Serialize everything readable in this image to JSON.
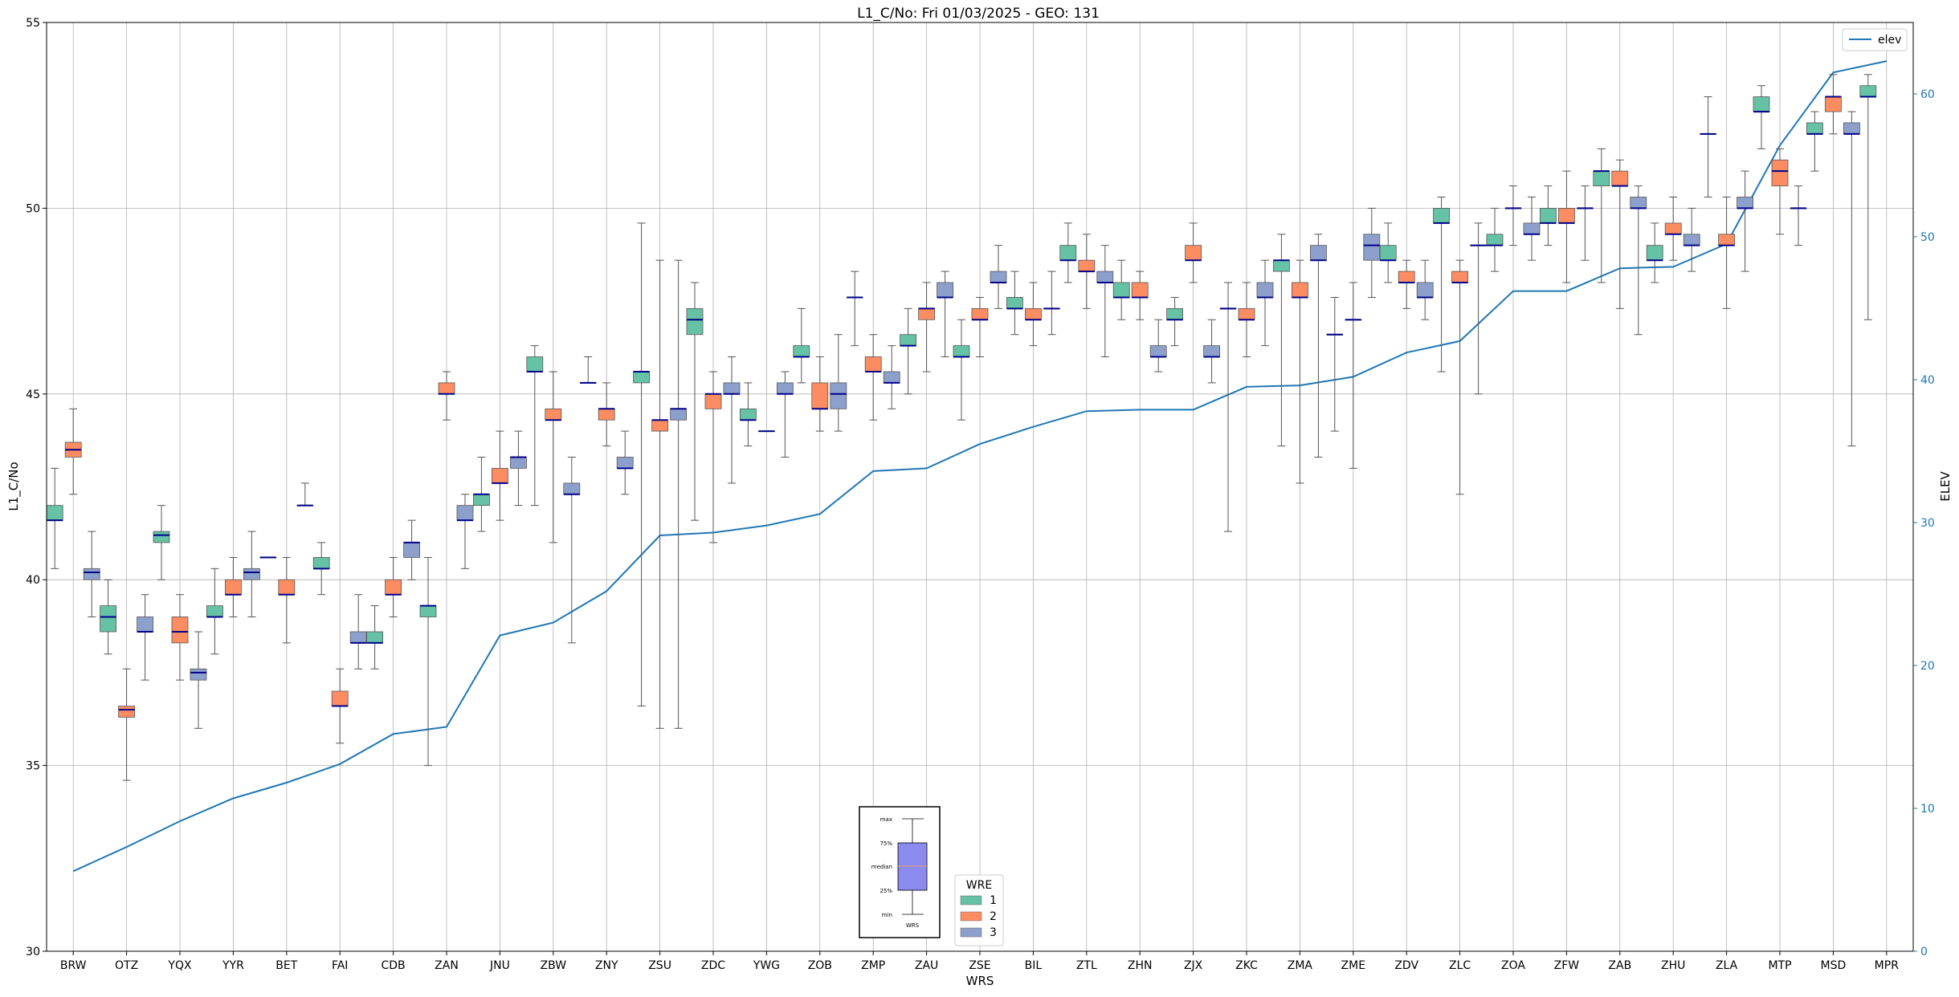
{
  "chart_data": {
    "type": "box",
    "title": "L1_C/No: Fri 01/03/2025 - GEO: 131",
    "xlabel": "WRS",
    "ylabel": "L1_C/No",
    "y2label": "ELEV",
    "ylim": [
      30,
      55
    ],
    "y2lim": [
      0,
      65
    ],
    "yticks": [
      30,
      35,
      40,
      45,
      50,
      55
    ],
    "y2ticks": [
      0,
      10,
      20,
      30,
      40,
      50,
      60
    ],
    "grid": true,
    "categories": [
      "BRW",
      "OTZ",
      "YQX",
      "YYR",
      "BET",
      "FAI",
      "CDB",
      "ZAN",
      "JNU",
      "ZBW",
      "ZNY",
      "ZSU",
      "ZDC",
      "YWG",
      "ZOB",
      "ZMP",
      "ZAU",
      "ZSE",
      "BIL",
      "ZTL",
      "ZHN",
      "ZJX",
      "ZKC",
      "ZMA",
      "ZME",
      "ZDV",
      "ZLC",
      "ZOA",
      "ZFW",
      "ZAB",
      "ZHU",
      "ZLA",
      "MTP",
      "MSD",
      "MPR"
    ],
    "wre_colors": {
      "1": "#66c2a5",
      "2": "#fc8d62",
      "3": "#8da0cb"
    },
    "median_color": "#00008b",
    "boxes": [
      {
        "cat": "BRW",
        "wre": 1,
        "min": 40.3,
        "q1": 41.6,
        "median": 41.6,
        "q3": 42.0,
        "max": 43.0
      },
      {
        "cat": "BRW",
        "wre": 2,
        "min": 42.3,
        "q1": 43.3,
        "median": 43.5,
        "q3": 43.7,
        "max": 44.6
      },
      {
        "cat": "BRW",
        "wre": 3,
        "min": 39.0,
        "q1": 40.0,
        "median": 40.2,
        "q3": 40.3,
        "max": 41.3
      },
      {
        "cat": "OTZ",
        "wre": 1,
        "min": 38.0,
        "q1": 38.6,
        "median": 39.0,
        "q3": 39.3,
        "max": 40.0
      },
      {
        "cat": "OTZ",
        "wre": 2,
        "min": 34.6,
        "q1": 36.3,
        "median": 36.5,
        "q3": 36.6,
        "max": 37.6
      },
      {
        "cat": "OTZ",
        "wre": 3,
        "min": 37.3,
        "q1": 38.6,
        "median": 38.6,
        "q3": 39.0,
        "max": 39.6
      },
      {
        "cat": "YQX",
        "wre": 1,
        "min": 40.0,
        "q1": 41.0,
        "median": 41.2,
        "q3": 41.3,
        "max": 42.0
      },
      {
        "cat": "YQX",
        "wre": 2,
        "min": 37.3,
        "q1": 38.3,
        "median": 38.6,
        "q3": 39.0,
        "max": 39.6
      },
      {
        "cat": "YQX",
        "wre": 3,
        "min": 36.0,
        "q1": 37.3,
        "median": 37.5,
        "q3": 37.6,
        "max": 38.6
      },
      {
        "cat": "YYR",
        "wre": 1,
        "min": 38.0,
        "q1": 39.0,
        "median": 39.0,
        "q3": 39.3,
        "max": 40.3
      },
      {
        "cat": "YYR",
        "wre": 2,
        "min": 39.0,
        "q1": 39.6,
        "median": 39.6,
        "q3": 40.0,
        "max": 40.6
      },
      {
        "cat": "YYR",
        "wre": 3,
        "min": 39.0,
        "q1": 40.0,
        "median": 40.2,
        "q3": 40.3,
        "max": 41.3
      },
      {
        "cat": "BET",
        "wre": 1,
        "min": 40.6,
        "q1": 40.6,
        "median": 40.6,
        "q3": 40.6,
        "max": 40.6
      },
      {
        "cat": "BET",
        "wre": 2,
        "min": 38.3,
        "q1": 39.6,
        "median": 39.6,
        "q3": 40.0,
        "max": 40.6
      },
      {
        "cat": "BET",
        "wre": 3,
        "min": 42.0,
        "q1": 42.0,
        "median": 42.0,
        "q3": 42.0,
        "max": 42.6
      },
      {
        "cat": "FAI",
        "wre": 1,
        "min": 39.6,
        "q1": 40.3,
        "median": 40.3,
        "q3": 40.6,
        "max": 41.0
      },
      {
        "cat": "FAI",
        "wre": 2,
        "min": 35.6,
        "q1": 36.6,
        "median": 36.6,
        "q3": 37.0,
        "max": 37.6
      },
      {
        "cat": "FAI",
        "wre": 3,
        "min": 37.6,
        "q1": 38.3,
        "median": 38.3,
        "q3": 38.6,
        "max": 39.6
      },
      {
        "cat": "CDB",
        "wre": 1,
        "min": 37.6,
        "q1": 38.3,
        "median": 38.3,
        "q3": 38.6,
        "max": 39.3
      },
      {
        "cat": "CDB",
        "wre": 2,
        "min": 39.0,
        "q1": 39.6,
        "median": 39.6,
        "q3": 40.0,
        "max": 40.6
      },
      {
        "cat": "CDB",
        "wre": 3,
        "min": 40.0,
        "q1": 40.6,
        "median": 41.0,
        "q3": 41.0,
        "max": 41.6
      },
      {
        "cat": "ZAN",
        "wre": 1,
        "min": 35.0,
        "q1": 39.0,
        "median": 39.3,
        "q3": 39.3,
        "max": 40.6
      },
      {
        "cat": "ZAN",
        "wre": 2,
        "min": 44.3,
        "q1": 45.0,
        "median": 45.0,
        "q3": 45.3,
        "max": 45.6
      },
      {
        "cat": "ZAN",
        "wre": 3,
        "min": 40.3,
        "q1": 41.6,
        "median": 41.6,
        "q3": 42.0,
        "max": 42.3
      },
      {
        "cat": "JNU",
        "wre": 1,
        "min": 41.3,
        "q1": 42.0,
        "median": 42.3,
        "q3": 42.3,
        "max": 43.3
      },
      {
        "cat": "JNU",
        "wre": 2,
        "min": 41.6,
        "q1": 42.6,
        "median": 42.6,
        "q3": 43.0,
        "max": 44.0
      },
      {
        "cat": "JNU",
        "wre": 3,
        "min": 42.0,
        "q1": 43.0,
        "median": 43.3,
        "q3": 43.3,
        "max": 44.0
      },
      {
        "cat": "ZBW",
        "wre": 1,
        "min": 42.0,
        "q1": 45.6,
        "median": 45.6,
        "q3": 46.0,
        "max": 46.3
      },
      {
        "cat": "ZBW",
        "wre": 2,
        "min": 41.0,
        "q1": 44.3,
        "median": 44.3,
        "q3": 44.6,
        "max": 45.6
      },
      {
        "cat": "ZBW",
        "wre": 3,
        "min": 38.3,
        "q1": 42.3,
        "median": 42.3,
        "q3": 42.6,
        "max": 43.3
      },
      {
        "cat": "ZNY",
        "wre": 1,
        "min": 45.3,
        "q1": 45.3,
        "median": 45.3,
        "q3": 45.3,
        "max": 46.0
      },
      {
        "cat": "ZNY",
        "wre": 2,
        "min": 43.6,
        "q1": 44.3,
        "median": 44.6,
        "q3": 44.6,
        "max": 45.3
      },
      {
        "cat": "ZNY",
        "wre": 3,
        "min": 42.3,
        "q1": 43.0,
        "median": 43.0,
        "q3": 43.3,
        "max": 44.0
      },
      {
        "cat": "ZSU",
        "wre": 1,
        "min": 36.6,
        "q1": 45.3,
        "median": 45.6,
        "q3": 45.6,
        "max": 49.6
      },
      {
        "cat": "ZSU",
        "wre": 2,
        "min": 36.0,
        "q1": 44.0,
        "median": 44.3,
        "q3": 44.3,
        "max": 48.6
      },
      {
        "cat": "ZSU",
        "wre": 3,
        "min": 36.0,
        "q1": 44.3,
        "median": 44.6,
        "q3": 44.6,
        "max": 48.6
      },
      {
        "cat": "ZDC",
        "wre": 1,
        "min": 41.6,
        "q1": 46.6,
        "median": 47.0,
        "q3": 47.3,
        "max": 48.0
      },
      {
        "cat": "ZDC",
        "wre": 2,
        "min": 41.0,
        "q1": 44.6,
        "median": 45.0,
        "q3": 45.0,
        "max": 45.6
      },
      {
        "cat": "ZDC",
        "wre": 3,
        "min": 42.6,
        "q1": 45.0,
        "median": 45.0,
        "q3": 45.3,
        "max": 46.0
      },
      {
        "cat": "YWG",
        "wre": 1,
        "min": 43.6,
        "q1": 44.3,
        "median": 44.3,
        "q3": 44.6,
        "max": 45.3
      },
      {
        "cat": "YWG",
        "wre": 2,
        "min": 44.0,
        "q1": 44.0,
        "median": 44.0,
        "q3": 44.0,
        "max": 44.0
      },
      {
        "cat": "YWG",
        "wre": 3,
        "min": 43.3,
        "q1": 45.0,
        "median": 45.0,
        "q3": 45.3,
        "max": 45.6
      },
      {
        "cat": "ZOB",
        "wre": 1,
        "min": 45.3,
        "q1": 46.0,
        "median": 46.0,
        "q3": 46.3,
        "max": 47.3
      },
      {
        "cat": "ZOB",
        "wre": 2,
        "min": 44.0,
        "q1": 44.6,
        "median": 44.6,
        "q3": 45.3,
        "max": 46.0
      },
      {
        "cat": "ZOB",
        "wre": 3,
        "min": 44.0,
        "q1": 44.6,
        "median": 45.0,
        "q3": 45.3,
        "max": 46.6
      },
      {
        "cat": "ZMP",
        "wre": 1,
        "min": 46.3,
        "q1": 47.6,
        "median": 47.6,
        "q3": 47.6,
        "max": 48.3
      },
      {
        "cat": "ZMP",
        "wre": 2,
        "min": 44.3,
        "q1": 45.6,
        "median": 45.6,
        "q3": 46.0,
        "max": 46.6
      },
      {
        "cat": "ZMP",
        "wre": 3,
        "min": 44.6,
        "q1": 45.3,
        "median": 45.3,
        "q3": 45.6,
        "max": 46.3
      },
      {
        "cat": "ZAU",
        "wre": 1,
        "min": 45.0,
        "q1": 46.3,
        "median": 46.3,
        "q3": 46.6,
        "max": 47.3
      },
      {
        "cat": "ZAU",
        "wre": 2,
        "min": 45.6,
        "q1": 47.0,
        "median": 47.3,
        "q3": 47.3,
        "max": 48.0
      },
      {
        "cat": "ZAU",
        "wre": 3,
        "min": 46.0,
        "q1": 47.6,
        "median": 47.6,
        "q3": 48.0,
        "max": 48.3
      },
      {
        "cat": "ZSE",
        "wre": 1,
        "min": 44.3,
        "q1": 46.0,
        "median": 46.0,
        "q3": 46.3,
        "max": 47.0
      },
      {
        "cat": "ZSE",
        "wre": 2,
        "min": 46.0,
        "q1": 47.0,
        "median": 47.0,
        "q3": 47.3,
        "max": 47.6
      },
      {
        "cat": "ZSE",
        "wre": 3,
        "min": 47.3,
        "q1": 48.0,
        "median": 48.0,
        "q3": 48.3,
        "max": 49.0
      },
      {
        "cat": "BIL",
        "wre": 1,
        "min": 46.6,
        "q1": 47.3,
        "median": 47.3,
        "q3": 47.6,
        "max": 48.3
      },
      {
        "cat": "BIL",
        "wre": 2,
        "min": 46.3,
        "q1": 47.0,
        "median": 47.0,
        "q3": 47.3,
        "max": 48.0
      },
      {
        "cat": "BIL",
        "wre": 3,
        "min": 46.6,
        "q1": 47.3,
        "median": 47.3,
        "q3": 47.3,
        "max": 48.3
      },
      {
        "cat": "ZTL",
        "wre": 1,
        "min": 48.0,
        "q1": 48.6,
        "median": 48.6,
        "q3": 49.0,
        "max": 49.6
      },
      {
        "cat": "ZTL",
        "wre": 2,
        "min": 47.3,
        "q1": 48.3,
        "median": 48.3,
        "q3": 48.6,
        "max": 49.3
      },
      {
        "cat": "ZTL",
        "wre": 3,
        "min": 46.0,
        "q1": 48.0,
        "median": 48.0,
        "q3": 48.3,
        "max": 49.0
      },
      {
        "cat": "ZHN",
        "wre": 1,
        "min": 47.0,
        "q1": 47.6,
        "median": 47.6,
        "q3": 48.0,
        "max": 48.6
      },
      {
        "cat": "ZHN",
        "wre": 2,
        "min": 47.0,
        "q1": 47.6,
        "median": 47.6,
        "q3": 48.0,
        "max": 48.3
      },
      {
        "cat": "ZHN",
        "wre": 3,
        "min": 45.6,
        "q1": 46.0,
        "median": 46.0,
        "q3": 46.3,
        "max": 47.0
      },
      {
        "cat": "ZJX",
        "wre": 1,
        "min": 46.3,
        "q1": 47.0,
        "median": 47.0,
        "q3": 47.3,
        "max": 47.6
      },
      {
        "cat": "ZJX",
        "wre": 2,
        "min": 48.0,
        "q1": 48.6,
        "median": 48.6,
        "q3": 49.0,
        "max": 49.6
      },
      {
        "cat": "ZJX",
        "wre": 3,
        "min": 45.3,
        "q1": 46.0,
        "median": 46.0,
        "q3": 46.3,
        "max": 47.0
      },
      {
        "cat": "ZKC",
        "wre": 1,
        "min": 41.3,
        "q1": 47.3,
        "median": 47.3,
        "q3": 47.3,
        "max": 48.0
      },
      {
        "cat": "ZKC",
        "wre": 2,
        "min": 46.0,
        "q1": 47.0,
        "median": 47.0,
        "q3": 47.3,
        "max": 48.0
      },
      {
        "cat": "ZKC",
        "wre": 3,
        "min": 46.3,
        "q1": 47.6,
        "median": 47.6,
        "q3": 48.0,
        "max": 48.6
      },
      {
        "cat": "ZMA",
        "wre": 1,
        "min": 43.6,
        "q1": 48.3,
        "median": 48.6,
        "q3": 48.6,
        "max": 49.3
      },
      {
        "cat": "ZMA",
        "wre": 2,
        "min": 42.6,
        "q1": 47.6,
        "median": 47.6,
        "q3": 48.0,
        "max": 48.6
      },
      {
        "cat": "ZMA",
        "wre": 3,
        "min": 43.3,
        "q1": 48.6,
        "median": 48.6,
        "q3": 49.0,
        "max": 49.3
      },
      {
        "cat": "ZME",
        "wre": 1,
        "min": 44.0,
        "q1": 46.6,
        "median": 46.6,
        "q3": 46.6,
        "max": 47.6
      },
      {
        "cat": "ZME",
        "wre": 2,
        "min": 43.0,
        "q1": 47.0,
        "median": 47.0,
        "q3": 47.0,
        "max": 48.0
      },
      {
        "cat": "ZME",
        "wre": 3,
        "min": 47.6,
        "q1": 48.6,
        "median": 49.0,
        "q3": 49.3,
        "max": 50.0
      },
      {
        "cat": "ZDV",
        "wre": 1,
        "min": 48.0,
        "q1": 48.6,
        "median": 48.6,
        "q3": 49.0,
        "max": 49.6
      },
      {
        "cat": "ZDV",
        "wre": 2,
        "min": 47.3,
        "q1": 48.0,
        "median": 48.0,
        "q3": 48.3,
        "max": 48.6
      },
      {
        "cat": "ZDV",
        "wre": 3,
        "min": 47.0,
        "q1": 47.6,
        "median": 47.6,
        "q3": 48.0,
        "max": 48.6
      },
      {
        "cat": "ZLC",
        "wre": 1,
        "min": 45.6,
        "q1": 49.6,
        "median": 49.6,
        "q3": 50.0,
        "max": 50.3
      },
      {
        "cat": "ZLC",
        "wre": 2,
        "min": 42.3,
        "q1": 48.0,
        "median": 48.0,
        "q3": 48.3,
        "max": 48.6
      },
      {
        "cat": "ZLC",
        "wre": 3,
        "min": 45.0,
        "q1": 49.0,
        "median": 49.0,
        "q3": 49.0,
        "max": 49.6
      },
      {
        "cat": "ZOA",
        "wre": 1,
        "min": 48.3,
        "q1": 49.0,
        "median": 49.0,
        "q3": 49.3,
        "max": 50.0
      },
      {
        "cat": "ZOA",
        "wre": 2,
        "min": 49.0,
        "q1": 50.0,
        "median": 50.0,
        "q3": 50.0,
        "max": 50.6
      },
      {
        "cat": "ZOA",
        "wre": 3,
        "min": 48.6,
        "q1": 49.3,
        "median": 49.3,
        "q3": 49.6,
        "max": 50.3
      },
      {
        "cat": "ZFW",
        "wre": 1,
        "min": 49.0,
        "q1": 49.6,
        "median": 49.6,
        "q3": 50.0,
        "max": 50.6
      },
      {
        "cat": "ZFW",
        "wre": 2,
        "min": 48.0,
        "q1": 49.6,
        "median": 49.6,
        "q3": 50.0,
        "max": 51.0
      },
      {
        "cat": "ZFW",
        "wre": 3,
        "min": 48.6,
        "q1": 50.0,
        "median": 50.0,
        "q3": 50.0,
        "max": 50.6
      },
      {
        "cat": "ZAB",
        "wre": 1,
        "min": 48.0,
        "q1": 50.6,
        "median": 51.0,
        "q3": 51.0,
        "max": 51.6
      },
      {
        "cat": "ZAB",
        "wre": 2,
        "min": 47.3,
        "q1": 50.6,
        "median": 50.6,
        "q3": 51.0,
        "max": 51.3
      },
      {
        "cat": "ZAB",
        "wre": 3,
        "min": 46.6,
        "q1": 50.0,
        "median": 50.0,
        "q3": 50.3,
        "max": 50.6
      },
      {
        "cat": "ZHU",
        "wre": 1,
        "min": 48.0,
        "q1": 48.6,
        "median": 48.6,
        "q3": 49.0,
        "max": 49.6
      },
      {
        "cat": "ZHU",
        "wre": 2,
        "min": 48.6,
        "q1": 49.3,
        "median": 49.3,
        "q3": 49.6,
        "max": 50.3
      },
      {
        "cat": "ZHU",
        "wre": 3,
        "min": 48.3,
        "q1": 49.0,
        "median": 49.0,
        "q3": 49.3,
        "max": 50.0
      },
      {
        "cat": "ZLA",
        "wre": 1,
        "min": 50.3,
        "q1": 52.0,
        "median": 52.0,
        "q3": 52.0,
        "max": 53.0
      },
      {
        "cat": "ZLA",
        "wre": 2,
        "min": 47.3,
        "q1": 49.0,
        "median": 49.0,
        "q3": 49.3,
        "max": 50.3
      },
      {
        "cat": "ZLA",
        "wre": 3,
        "min": 48.3,
        "q1": 50.0,
        "median": 50.0,
        "q3": 50.3,
        "max": 51.0
      },
      {
        "cat": "MTP",
        "wre": 1,
        "min": 51.6,
        "q1": 52.6,
        "median": 52.6,
        "q3": 53.0,
        "max": 53.3
      },
      {
        "cat": "MTP",
        "wre": 2,
        "min": 49.3,
        "q1": 50.6,
        "median": 51.0,
        "q3": 51.3,
        "max": 51.6
      },
      {
        "cat": "MTP",
        "wre": 3,
        "min": 49.0,
        "q1": 50.0,
        "median": 50.0,
        "q3": 50.0,
        "max": 50.6
      },
      {
        "cat": "MSD",
        "wre": 1,
        "min": 51.0,
        "q1": 52.0,
        "median": 52.0,
        "q3": 52.3,
        "max": 52.6
      },
      {
        "cat": "MSD",
        "wre": 2,
        "min": 52.0,
        "q1": 52.6,
        "median": 53.0,
        "q3": 53.0,
        "max": 53.6
      },
      {
        "cat": "MSD",
        "wre": 3,
        "min": 43.6,
        "q1": 52.0,
        "median": 52.0,
        "q3": 52.3,
        "max": 52.6
      },
      {
        "cat": "MPR",
        "wre": 1,
        "min": 47.0,
        "q1": 53.0,
        "median": 53.0,
        "q3": 53.3,
        "max": 53.6
      }
    ],
    "elev_series": {
      "name": "elev",
      "color": "#1f77b4",
      "values": [
        5.6,
        7.3,
        9.1,
        10.7,
        11.8,
        13.1,
        15.2,
        15.7,
        22.1,
        23.0,
        25.2,
        29.1,
        29.3,
        29.8,
        30.6,
        33.6,
        33.8,
        35.5,
        36.7,
        37.8,
        37.9,
        37.9,
        39.5,
        39.6,
        40.2,
        41.9,
        42.7,
        46.2,
        46.2,
        47.8,
        47.9,
        49.5,
        56.4,
        61.5,
        62.3
      ]
    },
    "legend": {
      "title": "WRE",
      "entries": [
        "1",
        "2",
        "3"
      ],
      "series_legend": "elev",
      "placement": "top-right"
    },
    "key_box": {
      "labels": [
        "max",
        "75%",
        "median",
        "25%",
        "min"
      ],
      "xtick": "WRS"
    }
  }
}
